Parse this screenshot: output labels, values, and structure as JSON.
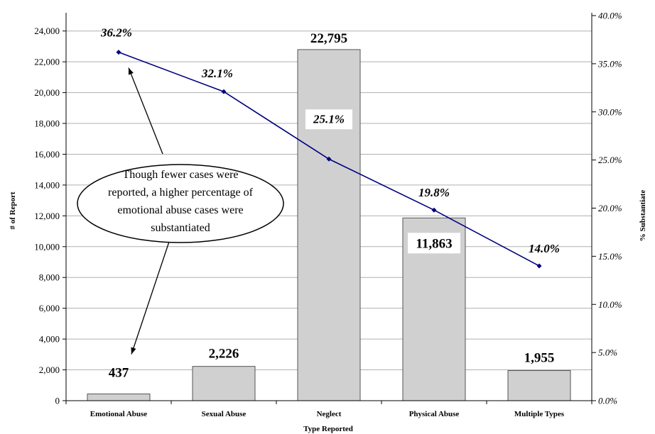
{
  "chart_data": {
    "type": "bar",
    "categories": [
      "Emotional Abuse",
      "Sexual Abuse",
      "Neglect",
      "Physical Abuse",
      "Multiple Types"
    ],
    "series": [
      {
        "axis": "left",
        "type": "bar",
        "values": [
          437,
          2226,
          22795,
          11863,
          1955
        ],
        "labels": [
          "437",
          "2,226",
          "22,795",
          "11,863",
          "1,955"
        ],
        "color": "#d0d0d0"
      },
      {
        "axis": "right",
        "type": "line",
        "values": [
          36.2,
          32.1,
          25.1,
          19.8,
          14.0
        ],
        "labels": [
          "36.2%",
          "32.1%",
          "25.1%",
          "19.8%",
          "14.0%"
        ],
        "color": "#000080"
      }
    ],
    "xlabel": "Type Reported",
    "ylabel": "# of Report",
    "y2label": "% Substantiate",
    "ylim": [
      0,
      25000
    ],
    "y2lim": [
      0,
      40
    ],
    "yticks": [
      "0",
      "2,000",
      "4,000",
      "6,000",
      "8,000",
      "10,000",
      "12,000",
      "14,000",
      "16,000",
      "18,000",
      "20,000",
      "22,000",
      "24,000"
    ],
    "y2ticks": [
      "0.0%",
      "5.0%",
      "10.0%",
      "15.0%",
      "20.0%",
      "25.0%",
      "30.0%",
      "35.0%",
      "40.0%"
    ],
    "grid": true,
    "annotation": {
      "lines": [
        "Though fewer cases were",
        "reported, a higher percentage of",
        "emotional abuse cases were",
        "substantiated"
      ],
      "points_to": [
        "Emotional Abuse",
        "Emotional Abuse"
      ]
    }
  }
}
